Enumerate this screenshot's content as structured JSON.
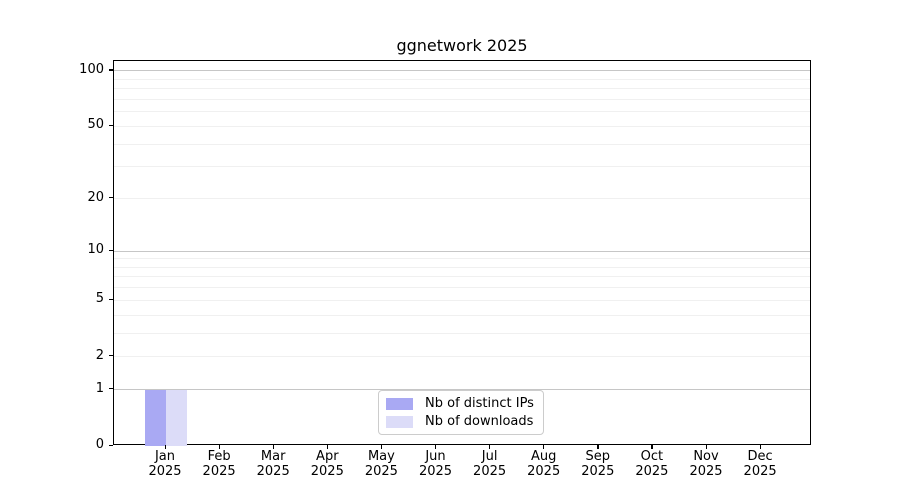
{
  "chart_data": {
    "type": "bar",
    "title": "ggnetwork 2025",
    "categories": [
      "Jan",
      "Feb",
      "Mar",
      "Apr",
      "May",
      "Jun",
      "Jul",
      "Aug",
      "Sep",
      "Oct",
      "Nov",
      "Dec"
    ],
    "category_year": "2025",
    "series": [
      {
        "name": "Nb of distinct IPs",
        "color": "#a9a9f3",
        "values": [
          1,
          0,
          0,
          0,
          0,
          0,
          0,
          0,
          0,
          0,
          0,
          0
        ]
      },
      {
        "name": "Nb of downloads",
        "color": "#dcdcf8",
        "values": [
          1,
          0,
          0,
          0,
          0,
          0,
          0,
          0,
          0,
          0,
          0,
          0
        ]
      }
    ],
    "xlabel": "",
    "ylabel": "",
    "yscale": "log1p",
    "ylim": [
      0,
      113
    ],
    "y_tick_labels": [
      "100",
      "50",
      "20",
      "10",
      "5",
      "2",
      "1",
      "0"
    ],
    "y_major_tick_values": [
      100,
      50,
      20,
      10,
      5,
      2,
      1,
      0
    ],
    "grid_major_values": [
      1,
      10,
      100
    ],
    "grid_minor_values": [
      2,
      3,
      4,
      5,
      6,
      7,
      8,
      9,
      20,
      30,
      40,
      50,
      60,
      70,
      80,
      90
    ],
    "grid": "horizontal",
    "legend_position": "lower-center-inside"
  },
  "colors": {
    "background": "#ffffff",
    "spine": "#000000",
    "grid_major": "#c6c6c6",
    "grid_minor": "#f0f0f0",
    "legend_border": "#cccccc",
    "tick_label": "#000000"
  }
}
